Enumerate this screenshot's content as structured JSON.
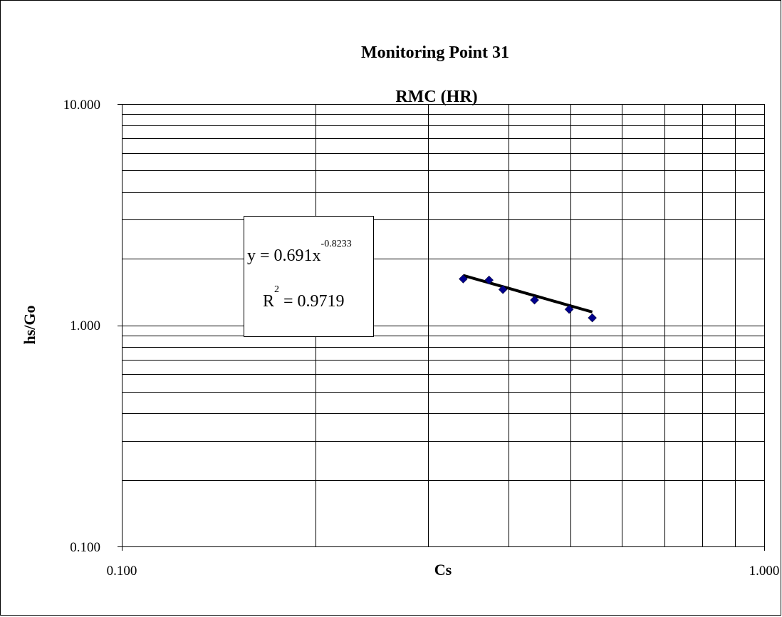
{
  "chart_data": {
    "type": "scatter",
    "title": "Monitoring Point 31",
    "subtitle": "RMC (HR)",
    "xlabel": "Cs",
    "ylabel": "hs/Go",
    "x_scale": "log",
    "y_scale": "log",
    "xlim": [
      0.1,
      1.0
    ],
    "ylim": [
      0.1,
      10.0
    ],
    "x_tick_labels": [
      "0.100",
      "1.000"
    ],
    "y_tick_labels": [
      "10.000",
      "1.000",
      "0.100"
    ],
    "grid": true,
    "legend": "none",
    "series": [
      {
        "marker": "diamond",
        "color": "#00008B",
        "points": [
          {
            "x": 0.34,
            "y": 1.62
          },
          {
            "x": 0.373,
            "y": 1.6
          },
          {
            "x": 0.392,
            "y": 1.45
          },
          {
            "x": 0.439,
            "y": 1.3
          },
          {
            "x": 0.497,
            "y": 1.18
          },
          {
            "x": 0.54,
            "y": 1.08
          }
        ]
      }
    ],
    "trendline": {
      "type": "power",
      "a": 0.691,
      "b": -0.8233,
      "x_range": [
        0.34,
        0.54
      ],
      "color": "#000000",
      "equation_prefix": "y = 0.691x",
      "equation_exponent": "-0.8233",
      "r2_prefix": "R",
      "r2_exponent": "2",
      "r2_suffix": " = 0.9719"
    }
  }
}
